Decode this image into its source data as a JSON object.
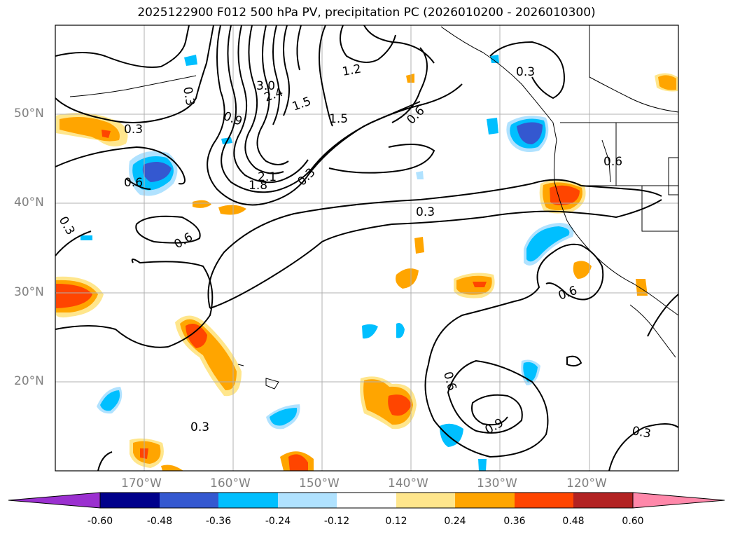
{
  "title": "2025122900 F012 500 hPa PV, precipitation PC (2026010200 - 2026010300)",
  "axes": {
    "lat_labels": [
      "50°N",
      "40°N",
      "30°N",
      "20°N"
    ],
    "lon_labels": [
      "170°W",
      "160°W",
      "150°W",
      "140°W",
      "130°W",
      "120°W"
    ]
  },
  "contour_labels": [
    "0.3",
    "0.3",
    "3.0",
    "2.4",
    "1.5",
    "1.2",
    "1.5",
    "0.9",
    "0.6",
    "0.6",
    "2.1",
    "1.8",
    "0.3",
    "0.3",
    "0.6",
    "0.3",
    "0.6",
    "0.6",
    "0.6",
    "0.9",
    "0.3",
    "0.3",
    "0.3"
  ],
  "colorbar": {
    "ticks": [
      "-0.60",
      "-0.48",
      "-0.36",
      "-0.24",
      "-0.12",
      "0.12",
      "0.24",
      "0.36",
      "0.48",
      "0.60"
    ],
    "colors": [
      "#9b30d0",
      "#00008b",
      "#3458d0",
      "#00bfff",
      "#b0e2ff",
      "#ffffff",
      "#ffe68c",
      "#ffa500",
      "#ff4500",
      "#b22222",
      "#ff88aa"
    ]
  },
  "colors": {
    "pos1": "#ffe68c",
    "pos2": "#ffa500",
    "pos3": "#ff4500",
    "pos4": "#b22222",
    "neg1": "#b0e2ff",
    "neg2": "#00bfff",
    "neg3": "#3458d0"
  }
}
